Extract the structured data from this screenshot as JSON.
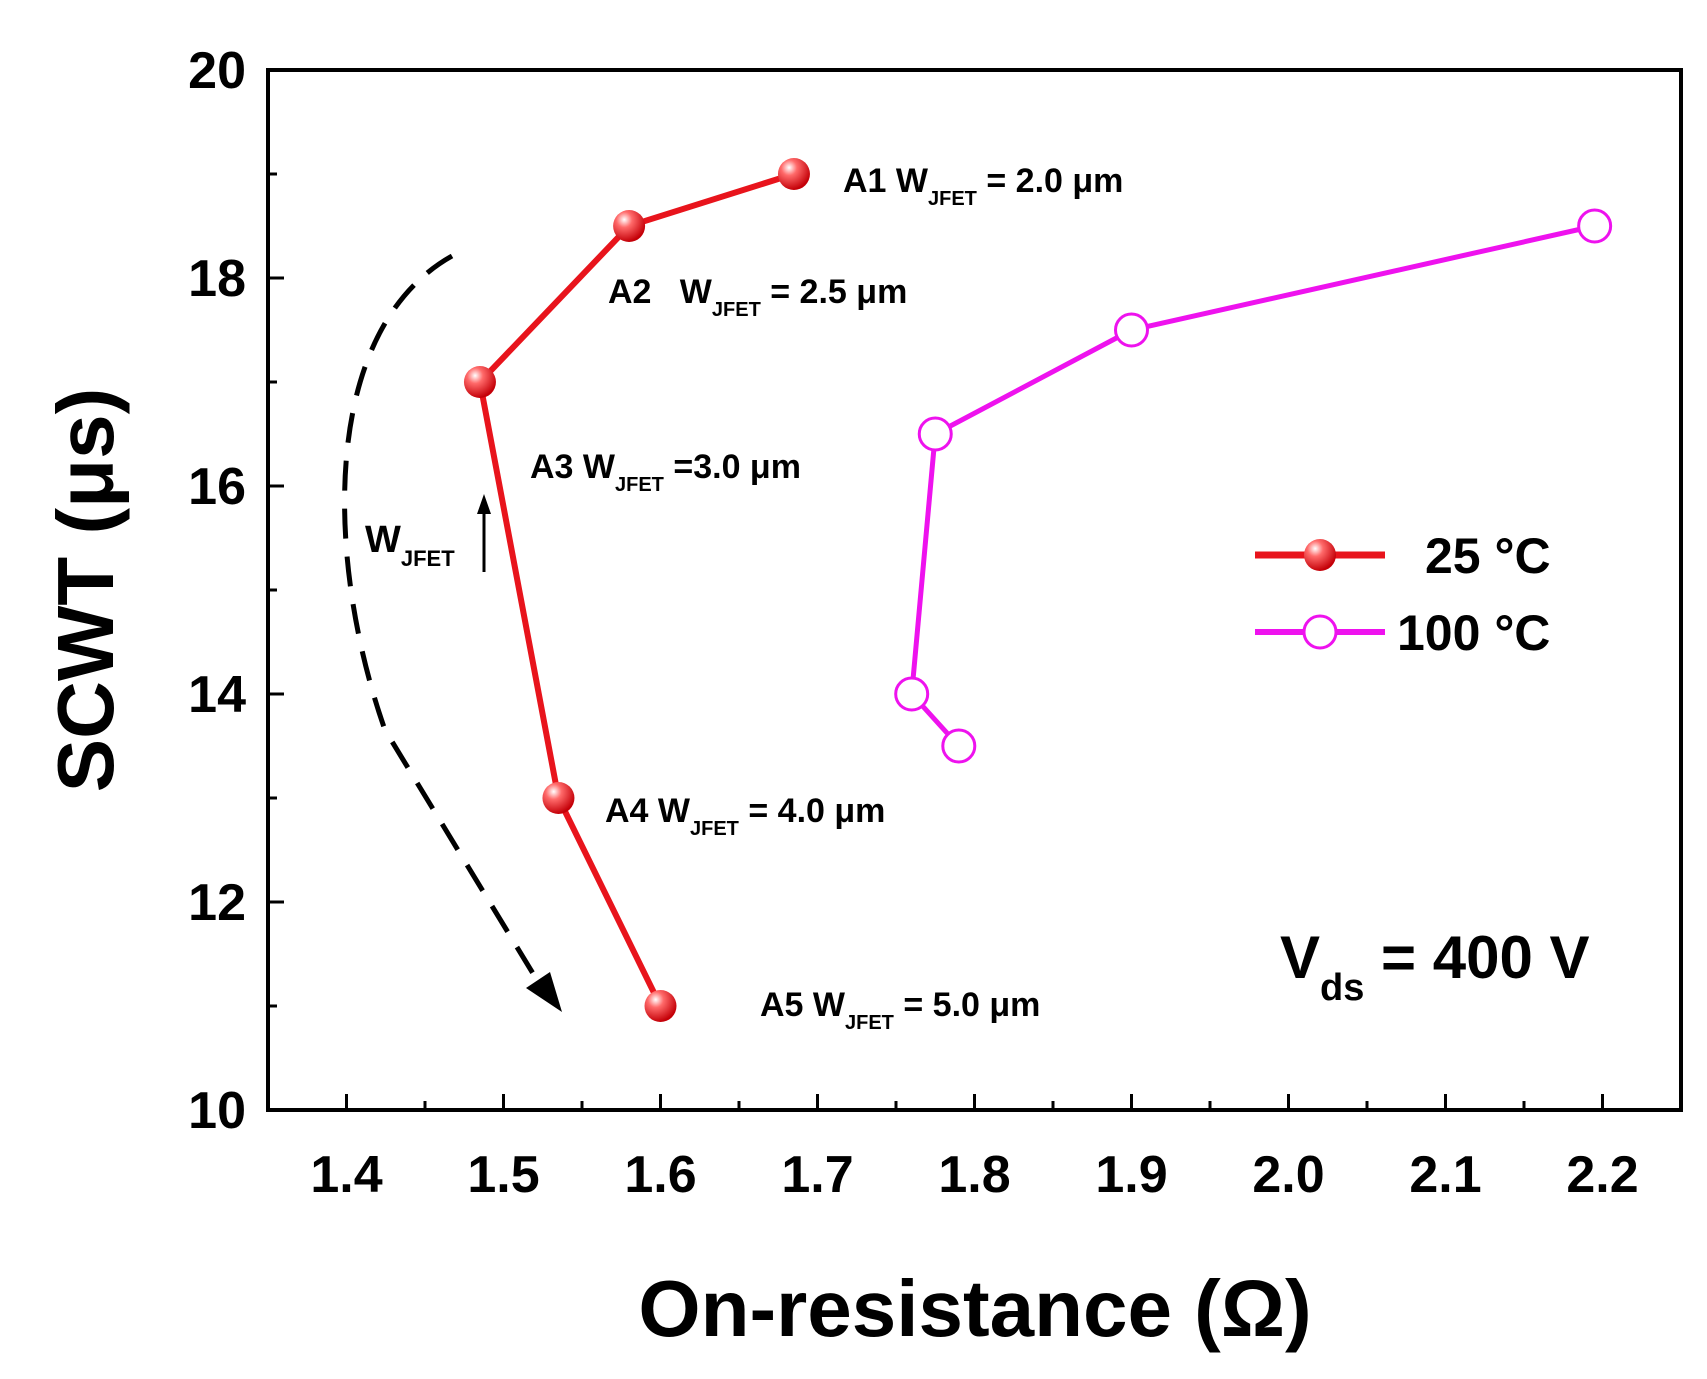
{
  "chart_data": {
    "type": "line",
    "xlabel": "On-resistance (Ω)",
    "ylabel": "SCWT (μs)",
    "xlim": [
      1.35,
      2.25
    ],
    "ylim": [
      10,
      20
    ],
    "x_ticks": [
      1.4,
      1.5,
      1.6,
      1.7,
      1.8,
      1.9,
      2.0,
      2.1,
      2.2
    ],
    "x_tick_labels": [
      "1.4",
      "1.5",
      "1.6",
      "1.7",
      "1.8",
      "1.9",
      "2.0",
      "2.1",
      "2.2"
    ],
    "y_ticks": [
      10,
      12,
      14,
      16,
      18,
      20
    ],
    "y_tick_labels": [
      "10",
      "12",
      "14",
      "16",
      "18",
      "20"
    ],
    "legend_position": "right",
    "series": [
      {
        "name": "25 °C",
        "color": "#e8141c",
        "marker": "filled-circle",
        "x": [
          1.685,
          1.58,
          1.485,
          1.535,
          1.6
        ],
        "y": [
          19.0,
          18.5,
          17.0,
          13.0,
          11.0
        ]
      },
      {
        "name": "100 °C",
        "color": "#ee12ee",
        "marker": "open-circle",
        "x": [
          2.195,
          1.9,
          1.775,
          1.76,
          1.79
        ],
        "y": [
          18.5,
          17.5,
          16.5,
          14.0,
          13.5
        ]
      }
    ],
    "point_labels": [
      {
        "id": "A1",
        "prefix": "A1 W",
        "sub": "JFET",
        "suffix": " = 2.0 μm"
      },
      {
        "id": "A2",
        "prefix": "A2   W",
        "sub": "JFET",
        "suffix": " = 2.5 μm"
      },
      {
        "id": "A3",
        "prefix": "A3 W",
        "sub": "JFET",
        "suffix": " =3.0 μm"
      },
      {
        "id": "A4",
        "prefix": "A4 W",
        "sub": "JFET",
        "suffix": " = 4.0 μm"
      },
      {
        "id": "A5",
        "prefix": "A5 W",
        "sub": "JFET",
        "suffix": " = 5.0 μm"
      }
    ],
    "trend_annotation": {
      "main": "W",
      "sub": "JFET",
      "direction": "increasing"
    },
    "condition": {
      "main": "V",
      "sub": "ds",
      "suffix": " = 400 V"
    }
  }
}
